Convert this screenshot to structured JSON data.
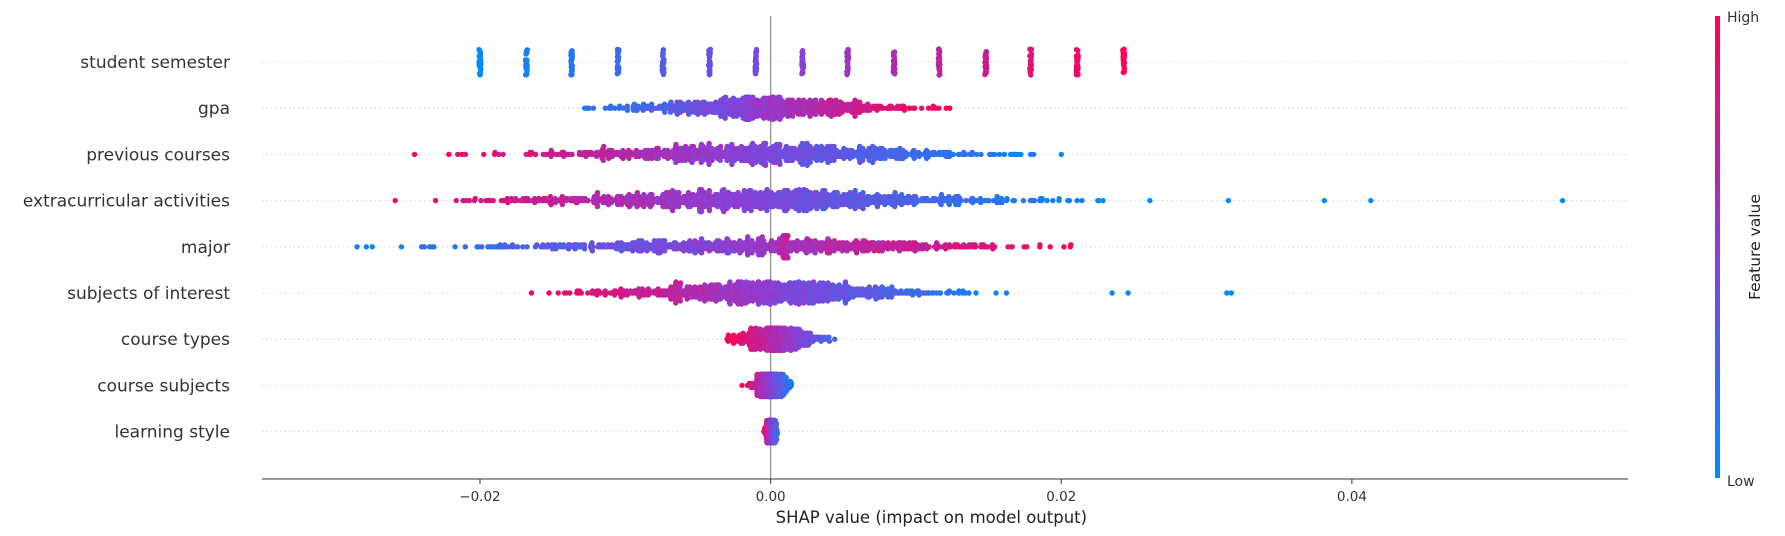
{
  "chart_data": {
    "type": "scatter",
    "subtype": "shap-beeswarm",
    "xlabel": "SHAP value (impact on model output)",
    "xlim": [
      -0.035,
      0.059
    ],
    "xticks": [
      -0.02,
      0.0,
      0.02,
      0.04
    ],
    "xtick_labels": [
      "−0.02",
      "0.00",
      "0.02",
      "0.04"
    ],
    "zero_line": 0.0,
    "grid": false,
    "colorbar": {
      "title": "Feature value",
      "high_label": "High",
      "low_label": "Low",
      "low_color": "#008bfb",
      "mid_color": "#8a3fd6",
      "high_color": "#ff0052"
    },
    "features": [
      {
        "name": "student semester",
        "clusters": [
          {
            "x": -0.02,
            "v": 0.0,
            "spread": 0.00012,
            "n": 28
          },
          {
            "x": -0.0168,
            "v": 0.07,
            "spread": 0.00012,
            "n": 28
          },
          {
            "x": -0.0137,
            "v": 0.14,
            "spread": 0.00012,
            "n": 28
          },
          {
            "x": -0.0105,
            "v": 0.21,
            "spread": 0.00012,
            "n": 28
          },
          {
            "x": -0.0074,
            "v": 0.29,
            "spread": 0.00012,
            "n": 28
          },
          {
            "x": -0.0042,
            "v": 0.36,
            "spread": 0.00012,
            "n": 28
          },
          {
            "x": -0.001,
            "v": 0.43,
            "spread": 0.00012,
            "n": 28
          },
          {
            "x": 0.0022,
            "v": 0.5,
            "spread": 0.00012,
            "n": 28
          },
          {
            "x": 0.0053,
            "v": 0.57,
            "spread": 0.00012,
            "n": 28
          },
          {
            "x": 0.0085,
            "v": 0.64,
            "spread": 0.00012,
            "n": 28
          },
          {
            "x": 0.0116,
            "v": 0.71,
            "spread": 0.00012,
            "n": 28
          },
          {
            "x": 0.0148,
            "v": 0.79,
            "spread": 0.00012,
            "n": 28
          },
          {
            "x": 0.0179,
            "v": 0.86,
            "spread": 0.00012,
            "n": 28
          },
          {
            "x": 0.0211,
            "v": 0.93,
            "spread": 0.00012,
            "n": 28
          },
          {
            "x": 0.0243,
            "v": 1.0,
            "spread": 0.00012,
            "n": 28
          }
        ]
      },
      {
        "name": "gpa",
        "range": [
          -0.0157,
          0.0125
        ],
        "trend": "increasing",
        "n": 900,
        "extra": [
          {
            "x": -0.0016,
            "v": 0.45,
            "spread": 0.0003,
            "n": 40
          }
        ]
      },
      {
        "name": "previous courses",
        "range": [
          -0.025,
          0.02
        ],
        "trend": "decreasing",
        "n": 1100,
        "outliers": [
          {
            "x": -0.0245,
            "v": 1.0
          },
          {
            "x": 0.02,
            "v": 0.0
          }
        ]
      },
      {
        "name": "extracurricular activities",
        "range": [
          -0.029,
          0.0233
        ],
        "trend": "decreasing",
        "n": 1300,
        "outliers": [
          {
            "x": 0.0261,
            "v": 0.0
          },
          {
            "x": 0.0315,
            "v": 0.0
          },
          {
            "x": 0.0381,
            "v": 0.0
          },
          {
            "x": 0.0413,
            "v": 0.0
          },
          {
            "x": 0.0545,
            "v": 0.0
          }
        ]
      },
      {
        "name": "major",
        "range": [
          -0.0305,
          0.022
        ],
        "trend": "increasing",
        "n": 900,
        "extra": [
          {
            "x": 0.001,
            "v": 0.75,
            "spread": 0.0004,
            "n": 60
          }
        ]
      },
      {
        "name": "subjects of interest",
        "range": [
          -0.017,
          0.0175
        ],
        "trend": "decreasing",
        "n": 1100,
        "outliers": [
          {
            "x": 0.0235,
            "v": 0.0
          },
          {
            "x": 0.0246,
            "v": 0.0
          },
          {
            "x": 0.0314,
            "v": 0.0
          },
          {
            "x": 0.0317,
            "v": 0.0
          }
        ]
      },
      {
        "name": "course types",
        "range": [
          -0.003,
          0.0065
        ],
        "trend": "decreasing",
        "n": 500
      },
      {
        "name": "course subjects",
        "range": [
          -0.002,
          0.002
        ],
        "trend": "decreasing",
        "n": 420
      },
      {
        "name": "learning style",
        "range": [
          -0.0005,
          0.0007
        ],
        "trend": "decreasing",
        "n": 360
      }
    ]
  }
}
